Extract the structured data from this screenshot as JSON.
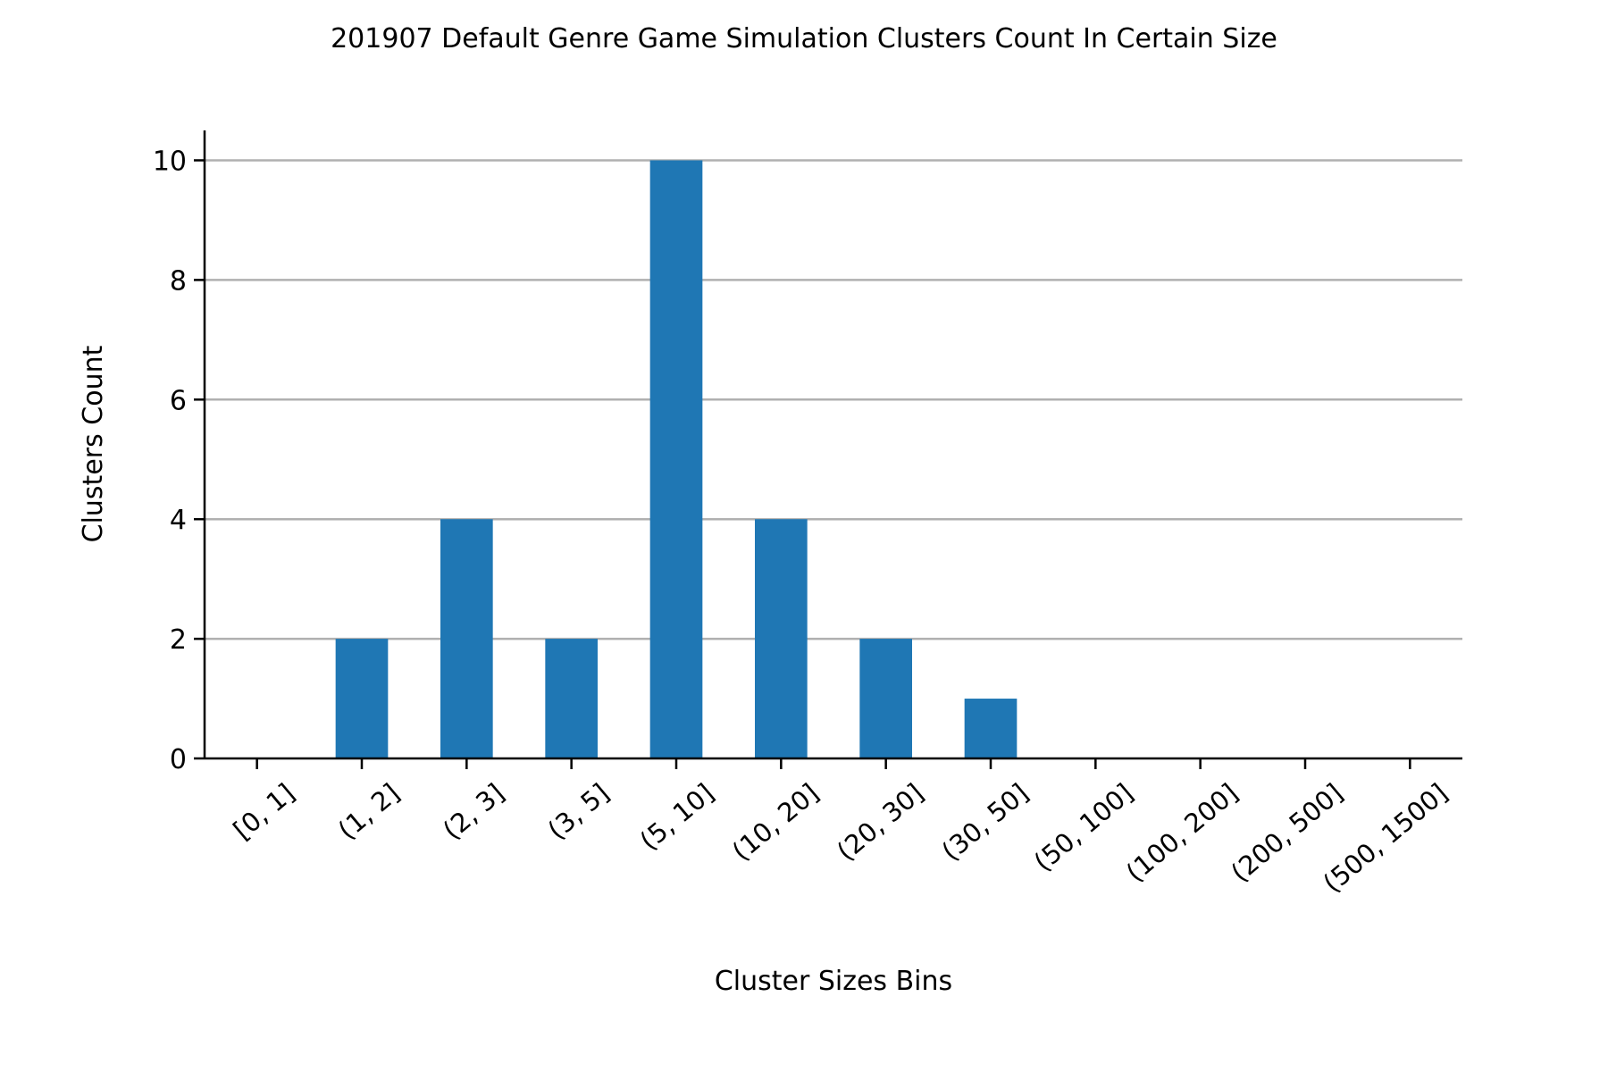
{
  "chart_data": {
    "type": "bar",
    "title": "201907 Default Genre Game Simulation Clusters Count In Certain Size",
    "xlabel": "Cluster Sizes Bins",
    "ylabel": "Clusters Count",
    "categories": [
      "[0, 1]",
      "(1, 2]",
      "(2, 3]",
      "(3, 5]",
      "(5, 10]",
      "(10, 20]",
      "(20, 30]",
      "(30, 50]",
      "(50, 100]",
      "(100, 200]",
      "(200, 500]",
      "(500, 1500]"
    ],
    "values": [
      0,
      2,
      4,
      2,
      10,
      4,
      2,
      1,
      0,
      0,
      0,
      0
    ],
    "ylim": [
      0,
      10.5
    ],
    "yticks": [
      0,
      2,
      4,
      6,
      8,
      10
    ],
    "grid": "horizontal",
    "legend": "none",
    "bar_color": "#1f77b4",
    "grid_color": "#b0b0b0"
  }
}
